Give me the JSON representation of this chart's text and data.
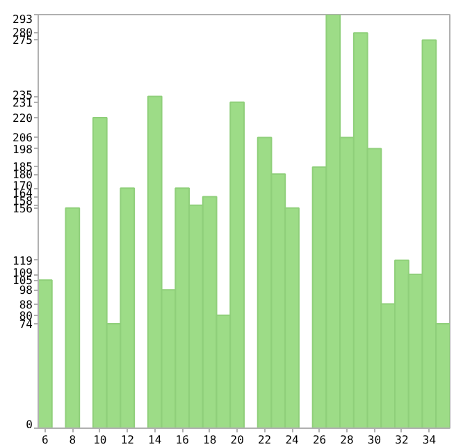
{
  "chart_data": {
    "type": "bar",
    "x": [
      6,
      8,
      10,
      11,
      12,
      14,
      15,
      16,
      17,
      18,
      19,
      20,
      22,
      23,
      24,
      26,
      27,
      28,
      29,
      30,
      31,
      32,
      33,
      34,
      35
    ],
    "values": [
      105,
      156,
      220,
      74,
      170,
      235,
      98,
      170,
      158,
      164,
      80,
      231,
      206,
      180,
      156,
      185,
      293,
      206,
      280,
      198,
      88,
      119,
      109,
      275,
      74
    ],
    "color": "#9ddc87",
    "xlim": [
      5.5,
      35.5
    ],
    "xticks": [
      6,
      8,
      10,
      12,
      14,
      16,
      18,
      20,
      22,
      24,
      26,
      28,
      30,
      32,
      34
    ],
    "ylim": [
      0,
      293
    ],
    "yticks": [
      0,
      74,
      80,
      88,
      98,
      105,
      109,
      119,
      156,
      158,
      164,
      170,
      180,
      185,
      198,
      206,
      220,
      231,
      235,
      275,
      280,
      293
    ],
    "grid": false
  }
}
